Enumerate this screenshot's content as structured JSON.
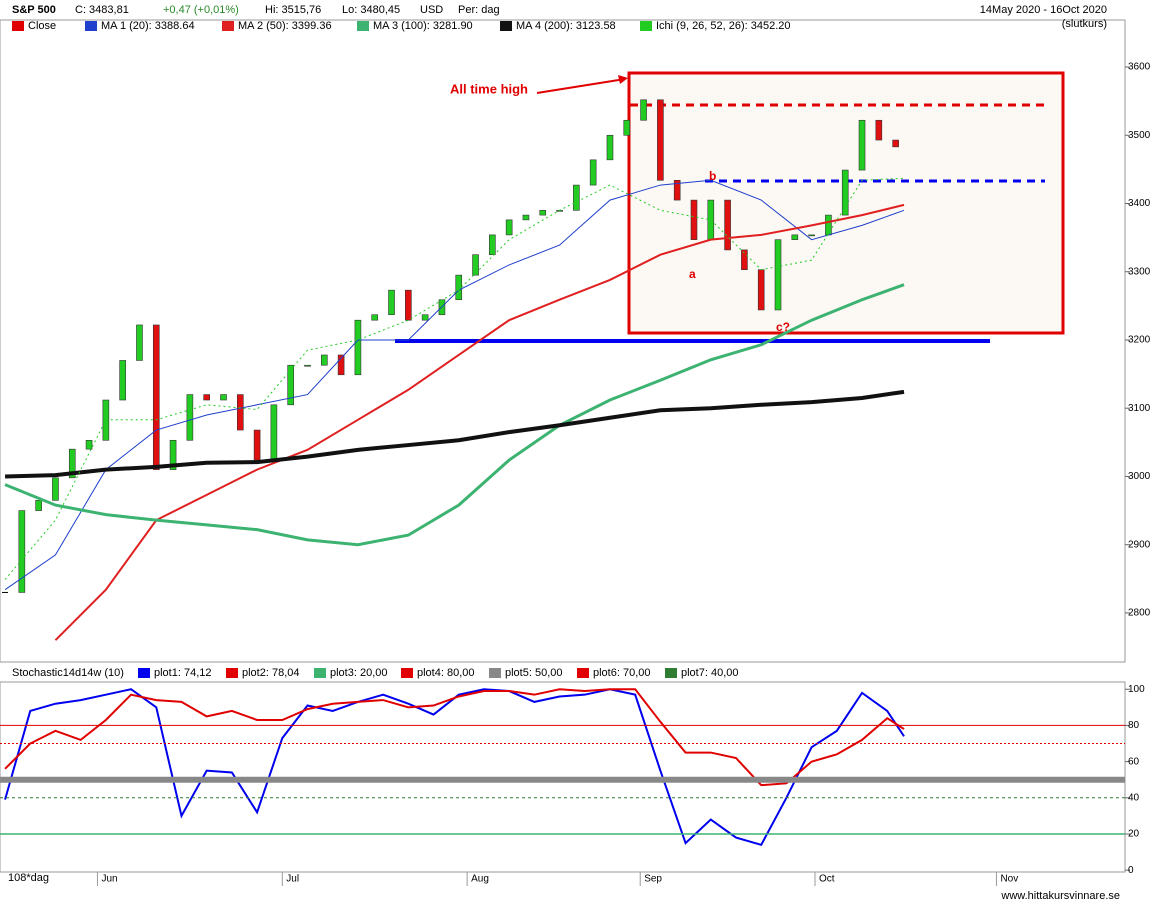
{
  "header": {
    "symbol": "S&P 500",
    "close": "C: 3483,81",
    "change": "+0,47 (+0,01%)",
    "high": "Hi: 3515,76",
    "low": "Lo: 3480,45",
    "currency": "USD",
    "period": "Per: dag",
    "range": "14May 2020 - 16Oct 2020",
    "mode": "(slutkurs)"
  },
  "chart_data": [
    {
      "type": "candlestick",
      "x": [
        0,
        2,
        4,
        6,
        8,
        10,
        12,
        14,
        16,
        18,
        20,
        22,
        24,
        26,
        28,
        30,
        32,
        34,
        36,
        38,
        40,
        42,
        44,
        46,
        48,
        50,
        52,
        54,
        56,
        58,
        60,
        62,
        64,
        66,
        68,
        70,
        72,
        74,
        76,
        78,
        80,
        82,
        84,
        86,
        88,
        90,
        92,
        94,
        96,
        98,
        100,
        102,
        104,
        106
      ],
      "series": [
        {
          "name": "Close",
          "color": "#e00000",
          "values": [
            2830,
            2950,
            2965,
            2998,
            3040,
            3053,
            3112,
            3170,
            3222,
            3010,
            3053,
            3120,
            3112,
            3120,
            3068,
            3024,
            3105,
            3163,
            3163,
            3178,
            3149,
            3229,
            3237,
            3273,
            3229,
            3237,
            3259,
            3295,
            3325,
            3354,
            3376,
            3383,
            3390,
            3390,
            3427,
            3464,
            3500,
            3522,
            3552,
            3434,
            3405,
            3347,
            3405,
            3332,
            3303,
            3244,
            3347,
            3354,
            3354,
            3383,
            3449,
            3522,
            3493,
            3483
          ]
        }
      ],
      "up_color": "#22cc22",
      "down_color": "#e01010",
      "lines_x": [
        0,
        6,
        12,
        18,
        24,
        30,
        36,
        42,
        48,
        54,
        60,
        66,
        72,
        78,
        84,
        90,
        96,
        102,
        107
      ],
      "lines": [
        {
          "name": "MA 1 (20): 3388.64",
          "color": "#1f3fcc",
          "values": [
            2834,
            2885,
            3010,
            3068,
            3090,
            3105,
            3120,
            3200,
            3200,
            3273,
            3310,
            3339,
            3405,
            3427,
            3434,
            3405,
            3347,
            3368,
            3390
          ]
        },
        {
          "name": "MA 2 (50): 3399.36",
          "color": "#e02020",
          "values": [
            null,
            2760,
            2834,
            2936,
            2973,
            3010,
            3039,
            3083,
            3127,
            3178,
            3229,
            3259,
            3288,
            3325,
            3347,
            3354,
            3368,
            3383,
            3398
          ]
        },
        {
          "name": "MA 3 (100): 3281.90",
          "color": "#3cb371",
          "values": [
            2988,
            2958,
            2944,
            2936,
            2929,
            2922,
            2907,
            2900,
            2914,
            2958,
            3024,
            3075,
            3112,
            3141,
            3171,
            3193,
            3229,
            3259,
            3281
          ]
        },
        {
          "name": "MA 4 (200): 3123.58",
          "color": "#111111",
          "values": [
            3000,
            3002,
            3010,
            3014,
            3020,
            3021,
            3029,
            3039,
            3046,
            3053,
            3065,
            3075,
            3086,
            3097,
            3100,
            3105,
            3109,
            3115,
            3124
          ]
        },
        {
          "name": "Ichi (9, 26, 52, 26): 3452.20",
          "color": "#22cc22",
          "values": [
            2849,
            2936,
            3083,
            3083,
            3105,
            3098,
            3185,
            3200,
            3229,
            3273,
            3347,
            3390,
            3427,
            3390,
            3376,
            3303,
            3317,
            3434,
            3437
          ]
        }
      ],
      "xlim": [
        -0.6,
        133.3
      ],
      "ylim": [
        2731,
        3666
      ],
      "xticks": [
        {
          "value": 11,
          "label": "Jun"
        },
        {
          "value": 33,
          "label": "Jul"
        },
        {
          "value": 55,
          "label": "Aug"
        },
        {
          "value": 75.6,
          "label": "Sep"
        },
        {
          "value": 96.4,
          "label": "Oct"
        },
        {
          "value": 118,
          "label": "Nov"
        }
      ],
      "yticks": [
        2800,
        2900,
        3000,
        3100,
        3200,
        3300,
        3400,
        3500,
        3600
      ],
      "annotations": {
        "ath": "All time high",
        "a": "a",
        "b": "b",
        "c": "c?"
      },
      "period_label": "108*dag"
    },
    {
      "type": "line",
      "title": "Stochastic14d14w (10)",
      "x": [
        0,
        3,
        6,
        9,
        12,
        15,
        18,
        21,
        24,
        27,
        30,
        33,
        36,
        39,
        42,
        45,
        48,
        51,
        54,
        57,
        60,
        63,
        66,
        69,
        72,
        75,
        78,
        81,
        84,
        87,
        90,
        93,
        96,
        99,
        102,
        105,
        107
      ],
      "series": [
        {
          "name": "plot1: 74,12",
          "color": "#0000ee",
          "values": [
            39,
            88,
            92,
            94,
            97,
            100,
            90,
            30,
            55,
            54,
            32,
            73,
            91,
            88,
            93,
            97,
            92,
            86,
            97,
            100,
            99,
            93,
            96,
            97,
            100,
            97,
            55,
            15,
            28,
            18,
            14,
            40,
            68,
            77,
            98,
            88,
            74
          ]
        },
        {
          "name": "plot2: 78,04",
          "color": "#e00000",
          "values": [
            56,
            70,
            77,
            72,
            83,
            97,
            94,
            93,
            85,
            88,
            83,
            83,
            89,
            92,
            93,
            94,
            90,
            91,
            96,
            99,
            99,
            97,
            100,
            99,
            100,
            100,
            82,
            65,
            65,
            62,
            47,
            48,
            60,
            64,
            72,
            84,
            78
          ]
        },
        {
          "name": "plot3: 20,00",
          "color": "#3cb371",
          "level": 20
        },
        {
          "name": "plot4: 80,00",
          "color": "#e00000",
          "level": 80
        },
        {
          "name": "plot5: 50,00",
          "color": "#888888",
          "level": 50
        },
        {
          "name": "plot6: 70,00",
          "color": "#e00000",
          "level": 70
        },
        {
          "name": "plot7: 40,00",
          "color": "#2e7d32",
          "level": 40
        }
      ],
      "xlim": [
        -0.6,
        133.3
      ],
      "ylim": [
        -1,
        104
      ],
      "yticks": [
        0,
        20,
        40,
        60,
        80,
        100
      ]
    }
  ],
  "footer": "www.hittakursvinnare.se"
}
